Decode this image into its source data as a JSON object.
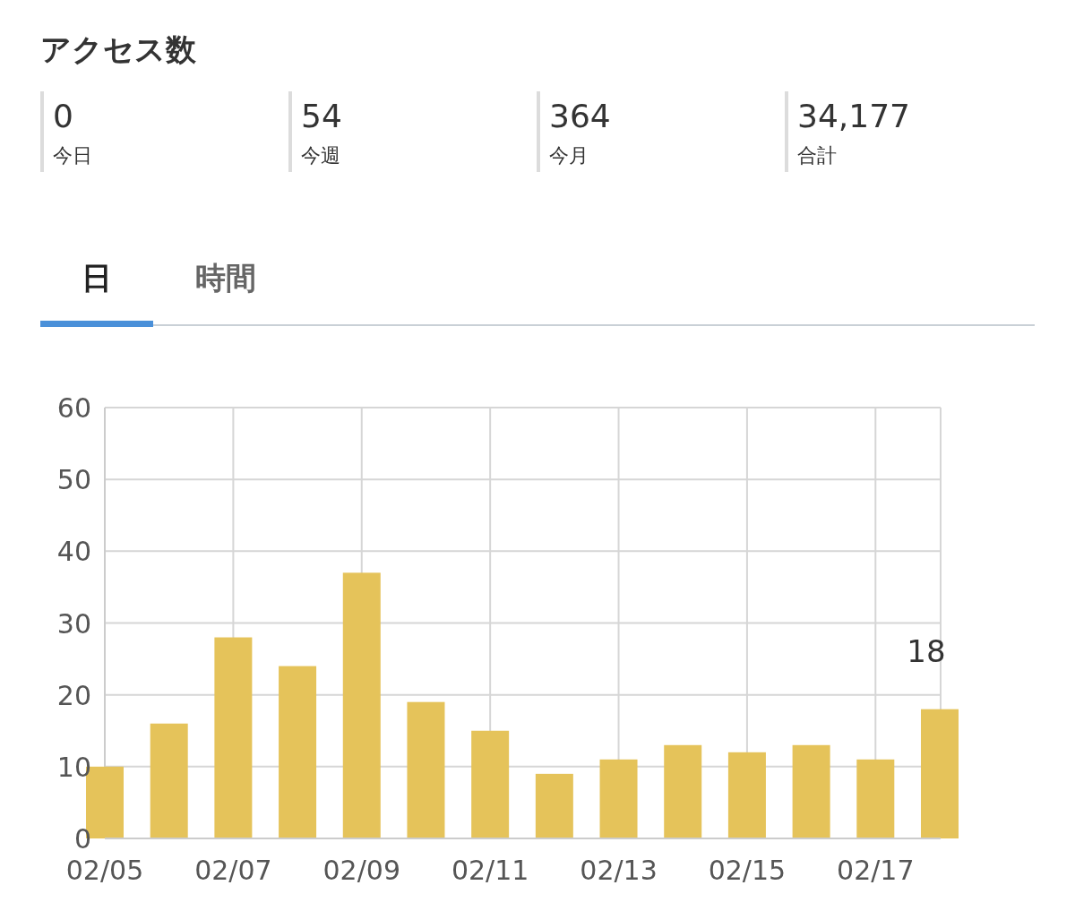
{
  "chart_data": [
    {
      "type": "other",
      "title": "アクセス数",
      "categories": [
        "今日",
        "今週",
        "今月",
        "合計"
      ],
      "annotations": [
        "0",
        "54",
        "364",
        "34,177"
      ]
    },
    {
      "type": "bar",
      "annotations": [
        "日",
        "時間"
      ],
      "categories": [
        "02/05",
        null,
        "02/07",
        null,
        "02/09",
        null,
        "02/11",
        null,
        "02/13",
        null,
        "02/15",
        null,
        "02/17",
        null
      ],
      "values": [
        10,
        16,
        28,
        24,
        37,
        19,
        15,
        9,
        11,
        13,
        12,
        13,
        11,
        18
      ],
      "value_labels": [
        null,
        null,
        null,
        null,
        null,
        null,
        null,
        null,
        null,
        null,
        null,
        null,
        null,
        "18"
      ],
      "color": "#e5c35a",
      "ylim": [
        0,
        60
      ],
      "yticks": [
        0,
        10,
        20,
        30,
        40,
        50,
        60
      ],
      "grid": true
    }
  ]
}
